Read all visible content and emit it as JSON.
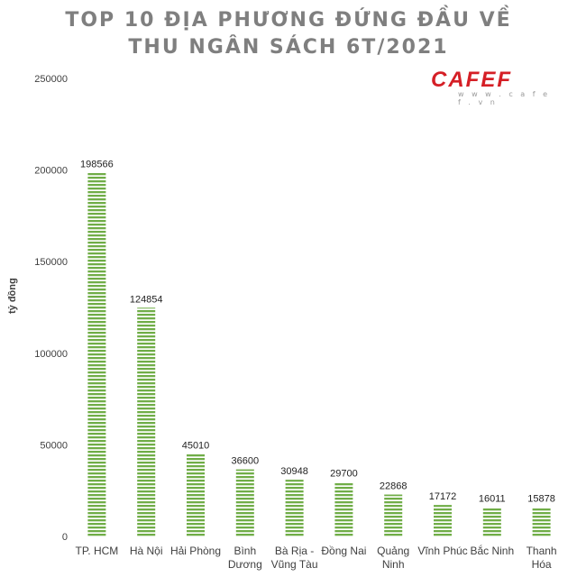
{
  "title": {
    "line1": "TOP 10 ĐỊA PHƯƠNG ĐỨNG ĐẦU VỀ",
    "line2": "THU NGÂN SÁCH 6T/2021"
  },
  "logo": {
    "text": "CAFEF",
    "subtext": "w w w . c a f e f . v n",
    "color": "#d51f26"
  },
  "chart_data": {
    "type": "bar",
    "ylabel": "tỷ đồng",
    "xlabel": "",
    "ylim": [
      0,
      250000
    ],
    "yticks": [
      0,
      50000,
      100000,
      150000,
      200000,
      250000
    ],
    "grid": false,
    "bar_color": "#70ad47",
    "categories": [
      [
        "TP. HCM"
      ],
      [
        "Hà Nội"
      ],
      [
        "Hải Phòng"
      ],
      [
        "Bình",
        "Dương"
      ],
      [
        "Bà Rịa -",
        "Vũng Tàu"
      ],
      [
        "Đồng Nai"
      ],
      [
        "Quảng",
        "Ninh"
      ],
      [
        "Vĩnh Phúc"
      ],
      [
        "Bắc Ninh"
      ],
      [
        "Thanh",
        "Hóa"
      ]
    ],
    "values": [
      198566,
      124854,
      45010,
      36600,
      30948,
      29700,
      22868,
      17172,
      16011,
      15878
    ]
  }
}
